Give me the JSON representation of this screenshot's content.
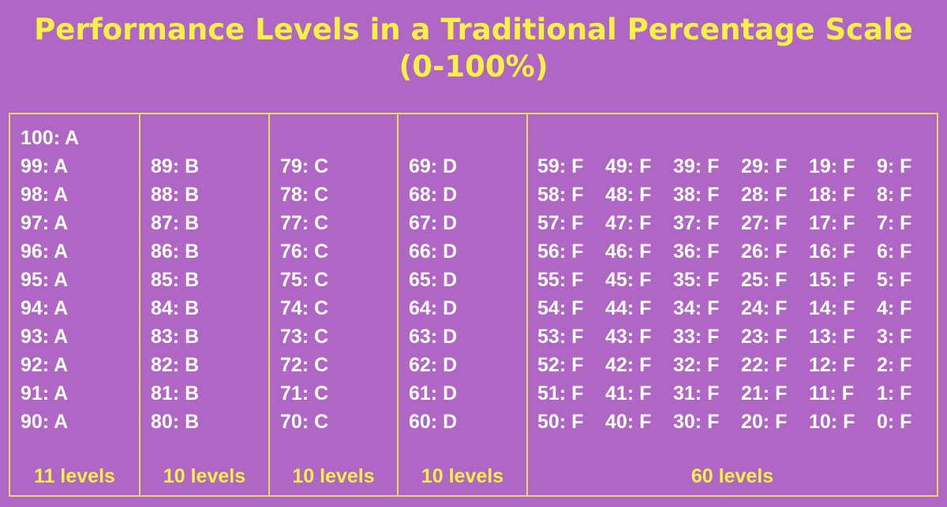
{
  "title_line1": "Performance Levels in a Traditional Percentage Scale",
  "title_line2": "(0-100%)",
  "columns": [
    {
      "count": "11 levels",
      "items": [
        "100: A",
        "99: A",
        "98: A",
        "97: A",
        "96: A",
        "95: A",
        "94: A",
        "93: A",
        "92: A",
        "91: A",
        "90: A"
      ]
    },
    {
      "count": "10 levels",
      "items": [
        "89: B",
        "88: B",
        "87: B",
        "86: B",
        "85: B",
        "84: B",
        "83: B",
        "82: B",
        "81: B",
        "80: B"
      ]
    },
    {
      "count": "10 levels",
      "items": [
        "79: C",
        "78: C",
        "77: C",
        "76: C",
        "75: C",
        "74: C",
        "73: C",
        "72: C",
        "71: C",
        "70: C"
      ]
    },
    {
      "count": "10 levels",
      "items": [
        "69: D",
        "68: D",
        "67: D",
        "66: D",
        "65: D",
        "64: D",
        "63: D",
        "62: D",
        "61: D",
        "60: D"
      ]
    },
    {
      "count": "60 levels",
      "subcolumns": [
        [
          "59: F",
          "58: F",
          "57: F",
          "56: F",
          "55: F",
          "54: F",
          "53: F",
          "52: F",
          "51: F",
          "50: F"
        ],
        [
          "49: F",
          "48: F",
          "47: F",
          "46: F",
          "45: F",
          "44: F",
          "43: F",
          "42: F",
          "41: F",
          "40: F"
        ],
        [
          "39: F",
          "38: F",
          "37: F",
          "36: F",
          "35: F",
          "34: F",
          "33: F",
          "32: F",
          "31: F",
          "30: F"
        ],
        [
          "29: F",
          "28: F",
          "27: F",
          "26: F",
          "25: F",
          "24: F",
          "23: F",
          "22: F",
          "21: F",
          "20: F"
        ],
        [
          "19: F",
          "18: F",
          "17: F",
          "16: F",
          "15: F",
          "14: F",
          "13: F",
          "12: F",
          "11: F",
          "10: F"
        ],
        [
          "9: F",
          "8: F",
          "7: F",
          "6: F",
          "5: F",
          "4: F",
          "3: F",
          "2: F",
          "1: F",
          "0: F"
        ]
      ]
    }
  ]
}
